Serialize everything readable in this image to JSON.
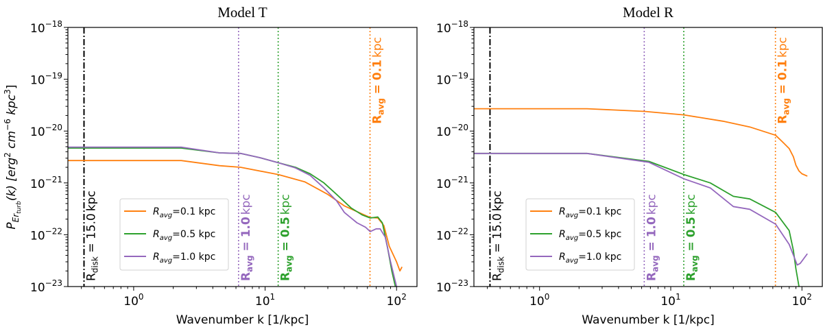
{
  "chart_data": [
    {
      "type": "line",
      "title": "Model T",
      "xlabel": "Wavenumber k [1/kpc]",
      "ylabel": {
        "main": "P",
        "sub": "Er",
        "subsub": "turb",
        "rest": "(k) [erg",
        "sup1": "2",
        "mid": " cm",
        "sup2": "−6",
        "mid2": " kpc",
        "sup3": "3",
        "end": "]"
      },
      "xscale": "log",
      "yscale": "log",
      "xlim": [
        0.316,
        143
      ],
      "ylim": [
        1e-23,
        1e-18
      ],
      "xticks": [
        {
          "base": "10",
          "exp": "0",
          "value": 1
        },
        {
          "base": "10",
          "exp": "1",
          "value": 10
        },
        {
          "base": "10",
          "exp": "2",
          "value": 100
        }
      ],
      "yticks": [
        {
          "base": "10",
          "exp": "−18",
          "value": 1e-18
        },
        {
          "base": "10",
          "exp": "−19",
          "value": 1e-19
        },
        {
          "base": "10",
          "exp": "−20",
          "value": 1e-20
        },
        {
          "base": "10",
          "exp": "−21",
          "value": 1e-21
        },
        {
          "base": "10",
          "exp": "−22",
          "value": 1e-22
        },
        {
          "base": "10",
          "exp": "−23",
          "value": 1e-23
        }
      ],
      "grid": false,
      "legend": "lower-left",
      "series": [
        {
          "name": {
            "pre": "R",
            "sub": "avg",
            "post": "=0.1 kpc"
          },
          "color": "#ff7f0e",
          "x": [
            0.316,
            2.3,
            4.5,
            6.5,
            12.6,
            20,
            30,
            40,
            55,
            63,
            72,
            80,
            88,
            100,
            106,
            110
          ],
          "y": [
            2.7e-21,
            2.7e-21,
            2.15e-21,
            2e-21,
            1.45e-21,
            1.05e-21,
            6e-22,
            3.6e-22,
            2.5e-22,
            2.15e-22,
            2.1e-22,
            1.5e-22,
            6e-23,
            3e-23,
            2e-23,
            2.4e-23
          ]
        },
        {
          "name": {
            "pre": "R",
            "sub": "avg",
            "post": "=0.5 kpc"
          },
          "color": "#2ca02c",
          "x": [
            0.316,
            2.3,
            4.5,
            6.5,
            9,
            12.6,
            17,
            22,
            28,
            35,
            45,
            55,
            63,
            72,
            78,
            85,
            92,
            98
          ],
          "y": [
            4.7e-21,
            4.7e-21,
            3.8e-21,
            3.7e-21,
            3.1e-21,
            2.45e-21,
            2e-21,
            1.5e-21,
            1e-21,
            6e-22,
            3.3e-22,
            2.4e-22,
            2.1e-22,
            2.2e-22,
            1.7e-22,
            6e-23,
            2e-23,
            1e-23
          ]
        },
        {
          "name": {
            "pre": "R",
            "sub": "avg",
            "post": "=1.0 kpc"
          },
          "color": "#9467bd",
          "x": [
            0.316,
            2.3,
            4.5,
            6.5,
            9,
            12.6,
            17,
            22,
            28,
            35,
            40,
            50,
            58,
            63,
            70,
            75,
            82,
            90,
            100
          ],
          "y": [
            4.9e-21,
            4.9e-21,
            3.8e-21,
            3.7e-21,
            3.1e-21,
            2.45e-21,
            1.95e-21,
            1.4e-21,
            8e-22,
            4.5e-22,
            2.7e-22,
            1.7e-22,
            1.4e-22,
            1.15e-22,
            1.3e-22,
            1.3e-22,
            9e-23,
            3e-23,
            1e-23
          ]
        }
      ],
      "vlines": [
        {
          "x": 0.419,
          "color": "#000000",
          "style": "dashdot",
          "label": {
            "pre": "R",
            "sub": "disk",
            "val": " = 15.0",
            "unit": "kpc"
          },
          "bold": false,
          "anchor": "bottom"
        },
        {
          "x": 6.28,
          "color": "#9467bd",
          "style": "dotted",
          "label": {
            "pre": "R",
            "sub": "avg",
            "val": " = 1.0",
            "unit": "kpc"
          },
          "bold": true,
          "anchor": "bottom"
        },
        {
          "x": 12.57,
          "color": "#2ca02c",
          "style": "dotted",
          "label": {
            "pre": "R",
            "sub": "avg",
            "val": " = 0.5",
            "unit": "kpc"
          },
          "bold": true,
          "anchor": "bottom"
        },
        {
          "x": 62.8,
          "color": "#ff7f0e",
          "style": "dotted",
          "label": {
            "pre": "R",
            "sub": "avg",
            "val": " = 0.1",
            "unit": "kpc"
          },
          "bold": true,
          "anchor": "top"
        }
      ]
    },
    {
      "type": "line",
      "title": "Model R",
      "xlabel": "Wavenumber k [1/kpc]",
      "xscale": "log",
      "yscale": "log",
      "xlim": [
        0.316,
        143
      ],
      "ylim": [
        1e-23,
        1e-18
      ],
      "xticks": [
        {
          "base": "10",
          "exp": "0",
          "value": 1
        },
        {
          "base": "10",
          "exp": "1",
          "value": 10
        },
        {
          "base": "10",
          "exp": "2",
          "value": 100
        }
      ],
      "yticks": [
        {
          "base": "10",
          "exp": "−18",
          "value": 1e-18
        },
        {
          "base": "10",
          "exp": "−19",
          "value": 1e-19
        },
        {
          "base": "10",
          "exp": "−20",
          "value": 1e-20
        },
        {
          "base": "10",
          "exp": "−21",
          "value": 1e-21
        },
        {
          "base": "10",
          "exp": "−22",
          "value": 1e-22
        },
        {
          "base": "10",
          "exp": "−23",
          "value": 1e-23
        }
      ],
      "grid": false,
      "legend": "lower-left",
      "series": [
        {
          "name": {
            "pre": "R",
            "sub": "avg",
            "post": "=0.1 kpc"
          },
          "color": "#ff7f0e",
          "x": [
            0.316,
            2.3,
            6.3,
            12.6,
            25,
            40,
            63,
            72,
            80,
            86,
            90,
            95,
            100,
            110
          ],
          "y": [
            2.7e-20,
            2.7e-20,
            2.4e-20,
            2.05e-20,
            1.55e-20,
            1.2e-20,
            8.3e-21,
            6e-21,
            4.6e-21,
            3.2e-21,
            2.2e-21,
            1.7e-21,
            1.5e-21,
            1.35e-21
          ]
        },
        {
          "name": {
            "pre": "R",
            "sub": "avg",
            "post": "=0.5 kpc"
          },
          "color": "#2ca02c",
          "x": [
            0.316,
            2.3,
            6.8,
            12.6,
            20,
            30,
            40,
            63,
            80,
            86,
            90,
            95
          ],
          "y": [
            3.7e-21,
            3.7e-21,
            2.6e-21,
            1.45e-21,
            1e-21,
            5.5e-22,
            4.9e-22,
            2.7e-22,
            1.2e-22,
            5e-23,
            2.2e-23,
            1e-23
          ]
        },
        {
          "name": {
            "pre": "R",
            "sub": "avg",
            "post": "=1.0 kpc"
          },
          "color": "#9467bd",
          "x": [
            0.316,
            2.3,
            6.8,
            12.6,
            20,
            30,
            40,
            63,
            80,
            88,
            92,
            97,
            110
          ],
          "y": [
            3.7e-21,
            3.7e-21,
            2.5e-21,
            1.2e-21,
            8e-22,
            3.5e-22,
            3.1e-22,
            1.6e-22,
            6.5e-23,
            3.5e-23,
            2.6e-23,
            2.8e-23,
            4.3e-23
          ]
        }
      ],
      "vlines": [
        {
          "x": 0.419,
          "color": "#000000",
          "style": "dashdot",
          "label": {
            "pre": "R",
            "sub": "disk",
            "val": " = 15.0",
            "unit": "kpc"
          },
          "bold": false,
          "anchor": "bottom"
        },
        {
          "x": 6.28,
          "color": "#9467bd",
          "style": "dotted",
          "label": {
            "pre": "R",
            "sub": "avg",
            "val": " = 1.0",
            "unit": "kpc"
          },
          "bold": true,
          "anchor": "bottom"
        },
        {
          "x": 12.57,
          "color": "#2ca02c",
          "style": "dotted",
          "label": {
            "pre": "R",
            "sub": "avg",
            "val": " = 0.5",
            "unit": "kpc"
          },
          "bold": true,
          "anchor": "bottom"
        },
        {
          "x": 62.8,
          "color": "#ff7f0e",
          "style": "dotted",
          "label": {
            "pre": "R",
            "sub": "avg",
            "val": " = 0.1",
            "unit": "kpc"
          },
          "bold": true,
          "anchor": "top"
        }
      ]
    }
  ]
}
